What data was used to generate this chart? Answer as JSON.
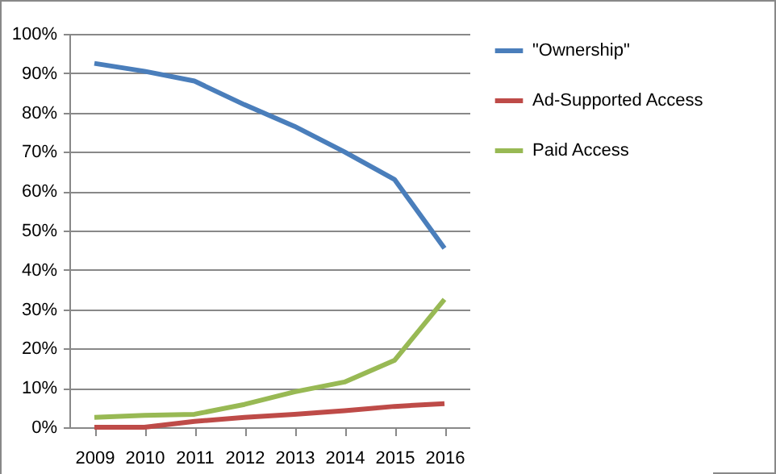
{
  "chart_data": {
    "type": "line",
    "categories": [
      "2009",
      "2010",
      "2011",
      "2012",
      "2013",
      "2014",
      "2015",
      "2016"
    ],
    "series": [
      {
        "name": "\"Ownership\"",
        "color": "#4a7ebb",
        "values": [
          92.5,
          90.5,
          88,
          82,
          76.5,
          70,
          63,
          45.5
        ]
      },
      {
        "name": "Ad-Supported Access",
        "color": "#be4b48",
        "values": [
          0,
          0,
          1.5,
          2.5,
          3.3,
          4.2,
          5.3,
          6
        ]
      },
      {
        "name": "Paid Access",
        "color": "#98b954",
        "values": [
          2.5,
          3,
          3.3,
          5.8,
          9,
          11.5,
          17,
          32.5
        ]
      }
    ],
    "ylim": [
      0,
      100
    ],
    "yticks": [
      {
        "value": 0,
        "label": "0%"
      },
      {
        "value": 10,
        "label": "10%"
      },
      {
        "value": 20,
        "label": "20%"
      },
      {
        "value": 30,
        "label": "30%"
      },
      {
        "value": 40,
        "label": "40%"
      },
      {
        "value": 50,
        "label": "50%"
      },
      {
        "value": 60,
        "label": "60%"
      },
      {
        "value": 70,
        "label": "70%"
      },
      {
        "value": 80,
        "label": "80%"
      },
      {
        "value": 90,
        "label": "90%"
      },
      {
        "value": 100,
        "label": "100%"
      }
    ],
    "grid": "y",
    "legend": "right",
    "marker": "none",
    "line_style": "solid"
  }
}
